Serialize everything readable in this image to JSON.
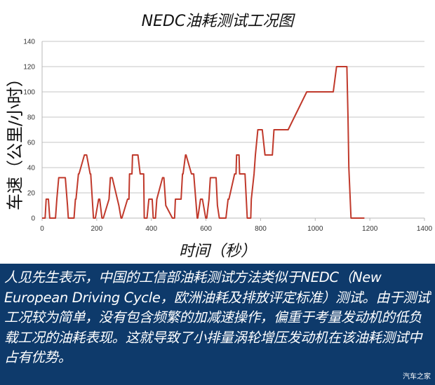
{
  "chart_data": {
    "type": "line",
    "title": "NEDC油耗测试工况图",
    "xlabel": "时间（秒）",
    "ylabel": "车速（公里/小时）",
    "xlim": [
      0,
      1400
    ],
    "ylim": [
      0,
      140
    ],
    "xticks": [
      0,
      200,
      400,
      600,
      800,
      1000,
      1200,
      1400
    ],
    "yticks": [
      0,
      20,
      40,
      60,
      80,
      100,
      120,
      140
    ],
    "grid": "horizontal",
    "legend": null,
    "line_color": "#c0392b",
    "series": [
      {
        "name": "NEDC",
        "x": [
          0,
          11,
          15,
          23,
          28,
          49,
          54,
          61,
          85,
          93,
          96,
          117,
          122,
          124,
          133,
          135,
          155,
          163,
          176,
          178,
          188,
          195,
          207,
          211,
          219,
          224,
          245,
          250,
          257,
          281,
          289,
          292,
          313,
          318,
          320,
          329,
          331,
          351,
          359,
          372,
          374,
          384,
          391,
          403,
          407,
          415,
          420,
          441,
          446,
          453,
          477,
          485,
          488,
          509,
          514,
          516,
          525,
          527,
          547,
          555,
          568,
          570,
          580,
          587,
          599,
          603,
          611,
          616,
          637,
          642,
          649,
          673,
          681,
          684,
          705,
          710,
          712,
          721,
          723,
          743,
          751,
          764,
          766,
          776,
          781,
          790,
          800,
          806,
          816,
          825,
          843,
          849,
          857,
          877,
          891,
          901,
          969,
          983,
          1043,
          1066,
          1078,
          1096,
          1116,
          1120,
          1123,
          1131,
          1138,
          1149,
          1160,
          1180
        ],
        "y": [
          0,
          0,
          15,
          15,
          0,
          0,
          15,
          32,
          32,
          10,
          0,
          0,
          15,
          15,
          35,
          35,
          50,
          50,
          35,
          35,
          0,
          0,
          15,
          15,
          0,
          0,
          15,
          32,
          32,
          10,
          0,
          0,
          15,
          15,
          35,
          35,
          50,
          50,
          35,
          35,
          0,
          0,
          15,
          15,
          0,
          0,
          15,
          32,
          32,
          10,
          0,
          0,
          15,
          15,
          35,
          35,
          50,
          50,
          35,
          35,
          0,
          0,
          15,
          15,
          0,
          0,
          15,
          32,
          32,
          10,
          0,
          0,
          15,
          15,
          35,
          35,
          50,
          50,
          35,
          35,
          0,
          0,
          15,
          35,
          50,
          70,
          70,
          70,
          50,
          50,
          50,
          70,
          70,
          70,
          70,
          70,
          100,
          100,
          100,
          100,
          120,
          120,
          120,
          80,
          40,
          0,
          0,
          0,
          0,
          0
        ]
      }
    ]
  },
  "caption": {
    "text": "人见先生表示，中国的工信部油耗测试方法类似于NEDC（New European Driving Cycle，欧洲油耗及排放评定标准）测试。由于测试工况较为简单，没有包含频繁的加减速操作，偏重于考量发动机的低负载工况的油耗表现。这就导致了小排量涡轮增压发动机在该油耗测试中占有优势。",
    "background": "#0e3a6b"
  },
  "watermark": "汽车之家"
}
